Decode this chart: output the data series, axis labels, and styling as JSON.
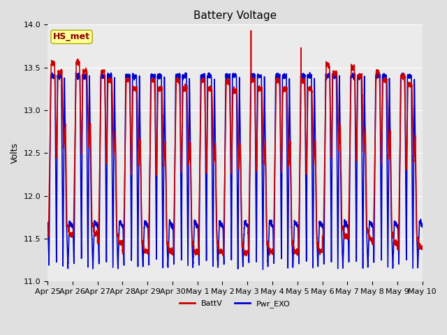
{
  "title": "Battery Voltage",
  "ylabel": "Volts",
  "ylim": [
    11.0,
    14.0
  ],
  "yticks": [
    11.0,
    11.5,
    12.0,
    12.5,
    13.0,
    13.5,
    14.0
  ],
  "x_tick_labels": [
    "Apr 25",
    "Apr 26",
    "Apr 27",
    "Apr 28",
    "Apr 29",
    "Apr 30",
    "May 1",
    "May 2",
    "May 3",
    "May 4",
    "May 5",
    "May 6",
    "May 7",
    "May 8",
    "May 9",
    "May 10"
  ],
  "batt_color": "#CC0000",
  "exo_color": "#0000CC",
  "batt_label": "BattV",
  "exo_label": "Pwr_EXO",
  "station_label": "HS_met",
  "title_fontsize": 11,
  "label_fontsize": 9,
  "tick_fontsize": 8,
  "background_color": "#E0E0E0",
  "plot_bg_color": "#EBEBEB",
  "grid_color": "#FFFFFF",
  "line_width": 1.2
}
